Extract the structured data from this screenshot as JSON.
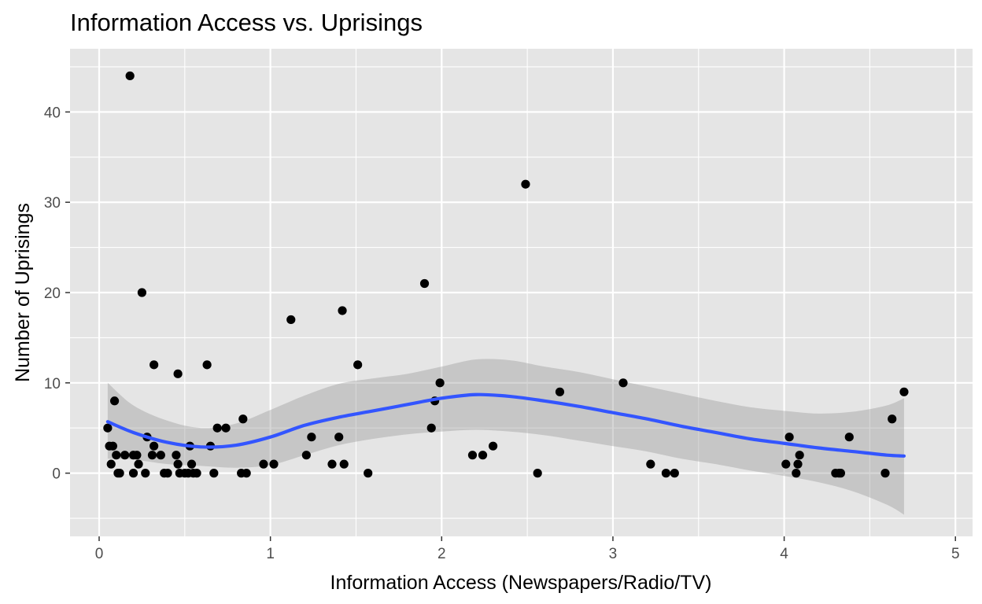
{
  "chart_data": {
    "type": "scatter",
    "title": "Information Access vs. Uprisings",
    "xlabel": "Information Access (Newspapers/Radio/TV)",
    "ylabel": "Number of Uprisings",
    "xlim": [
      -0.17,
      5.1
    ],
    "ylim": [
      -7,
      47
    ],
    "x_ticks": [
      0,
      1,
      2,
      3,
      4,
      5
    ],
    "x_tick_labels": [
      "0",
      "1",
      "2",
      "3",
      "4",
      "5"
    ],
    "y_ticks": [
      0,
      10,
      20,
      30,
      40
    ],
    "y_tick_labels": [
      "0",
      "10",
      "20",
      "30",
      "40"
    ],
    "grid": true,
    "background": "#e5e5e5",
    "grid_color": "#ffffff",
    "point_color": "#000000",
    "smooth_color": "#3355ff",
    "band_color": "#999999",
    "series": [
      {
        "kind": "points",
        "points": [
          [
            0.05,
            5
          ],
          [
            0.06,
            3
          ],
          [
            0.07,
            1
          ],
          [
            0.08,
            3
          ],
          [
            0.09,
            8
          ],
          [
            0.1,
            2
          ],
          [
            0.11,
            0
          ],
          [
            0.12,
            0
          ],
          [
            0.15,
            2
          ],
          [
            0.18,
            44
          ],
          [
            0.2,
            0
          ],
          [
            0.2,
            2
          ],
          [
            0.22,
            2
          ],
          [
            0.23,
            1
          ],
          [
            0.25,
            20
          ],
          [
            0.27,
            0
          ],
          [
            0.28,
            4
          ],
          [
            0.31,
            2
          ],
          [
            0.32,
            12
          ],
          [
            0.32,
            3
          ],
          [
            0.36,
            2
          ],
          [
            0.38,
            0
          ],
          [
            0.4,
            0
          ],
          [
            0.45,
            2
          ],
          [
            0.46,
            11
          ],
          [
            0.46,
            1
          ],
          [
            0.47,
            0
          ],
          [
            0.5,
            0
          ],
          [
            0.52,
            0
          ],
          [
            0.53,
            3
          ],
          [
            0.54,
            1
          ],
          [
            0.55,
            0
          ],
          [
            0.57,
            0
          ],
          [
            0.63,
            12
          ],
          [
            0.65,
            3
          ],
          [
            0.67,
            0
          ],
          [
            0.69,
            5
          ],
          [
            0.74,
            5
          ],
          [
            0.83,
            0
          ],
          [
            0.84,
            6
          ],
          [
            0.86,
            0
          ],
          [
            0.96,
            1
          ],
          [
            1.02,
            1
          ],
          [
            1.12,
            17
          ],
          [
            1.21,
            2
          ],
          [
            1.24,
            4
          ],
          [
            1.36,
            1
          ],
          [
            1.4,
            4
          ],
          [
            1.42,
            18
          ],
          [
            1.43,
            1
          ],
          [
            1.51,
            12
          ],
          [
            1.57,
            0
          ],
          [
            1.9,
            21
          ],
          [
            1.94,
            5
          ],
          [
            1.96,
            8
          ],
          [
            1.99,
            10
          ],
          [
            2.18,
            2
          ],
          [
            2.24,
            2
          ],
          [
            2.3,
            3
          ],
          [
            2.49,
            32
          ],
          [
            2.56,
            0
          ],
          [
            2.69,
            9
          ],
          [
            3.06,
            10
          ],
          [
            3.22,
            1
          ],
          [
            3.31,
            0
          ],
          [
            3.36,
            0
          ],
          [
            4.01,
            1
          ],
          [
            4.03,
            4
          ],
          [
            4.07,
            0
          ],
          [
            4.08,
            1
          ],
          [
            4.09,
            2
          ],
          [
            4.3,
            0
          ],
          [
            4.32,
            0
          ],
          [
            4.33,
            0
          ],
          [
            4.38,
            4
          ],
          [
            4.59,
            0
          ],
          [
            4.63,
            6
          ],
          [
            4.7,
            9
          ]
        ]
      },
      {
        "kind": "smooth",
        "x": [
          0.05,
          0.2,
          0.4,
          0.6,
          0.8,
          1.0,
          1.2,
          1.4,
          1.6,
          1.8,
          2.0,
          2.2,
          2.4,
          2.6,
          2.8,
          3.0,
          3.2,
          3.4,
          3.6,
          3.8,
          4.0,
          4.2,
          4.4,
          4.6,
          4.7
        ],
        "y": [
          5.7,
          4.5,
          3.4,
          2.9,
          3.1,
          4.0,
          5.3,
          6.2,
          6.9,
          7.6,
          8.3,
          8.7,
          8.5,
          8.0,
          7.4,
          6.7,
          6.0,
          5.2,
          4.5,
          3.8,
          3.3,
          2.8,
          2.4,
          2.0,
          1.9
        ],
        "lower": [
          1.6,
          1.5,
          1.0,
          0.8,
          0.6,
          0.9,
          2.0,
          3.1,
          3.8,
          4.3,
          4.6,
          4.8,
          4.6,
          4.2,
          3.6,
          3.0,
          2.4,
          1.6,
          1.0,
          0.3,
          -0.3,
          -1.0,
          -2.0,
          -3.5,
          -4.6
        ],
        "upper": [
          10.0,
          7.5,
          5.8,
          5.0,
          5.5,
          7.0,
          8.6,
          9.9,
          10.5,
          11.0,
          11.8,
          12.6,
          12.5,
          11.8,
          11.2,
          10.4,
          9.6,
          8.8,
          8.0,
          7.3,
          6.9,
          6.6,
          6.8,
          7.5,
          8.3
        ]
      }
    ]
  }
}
